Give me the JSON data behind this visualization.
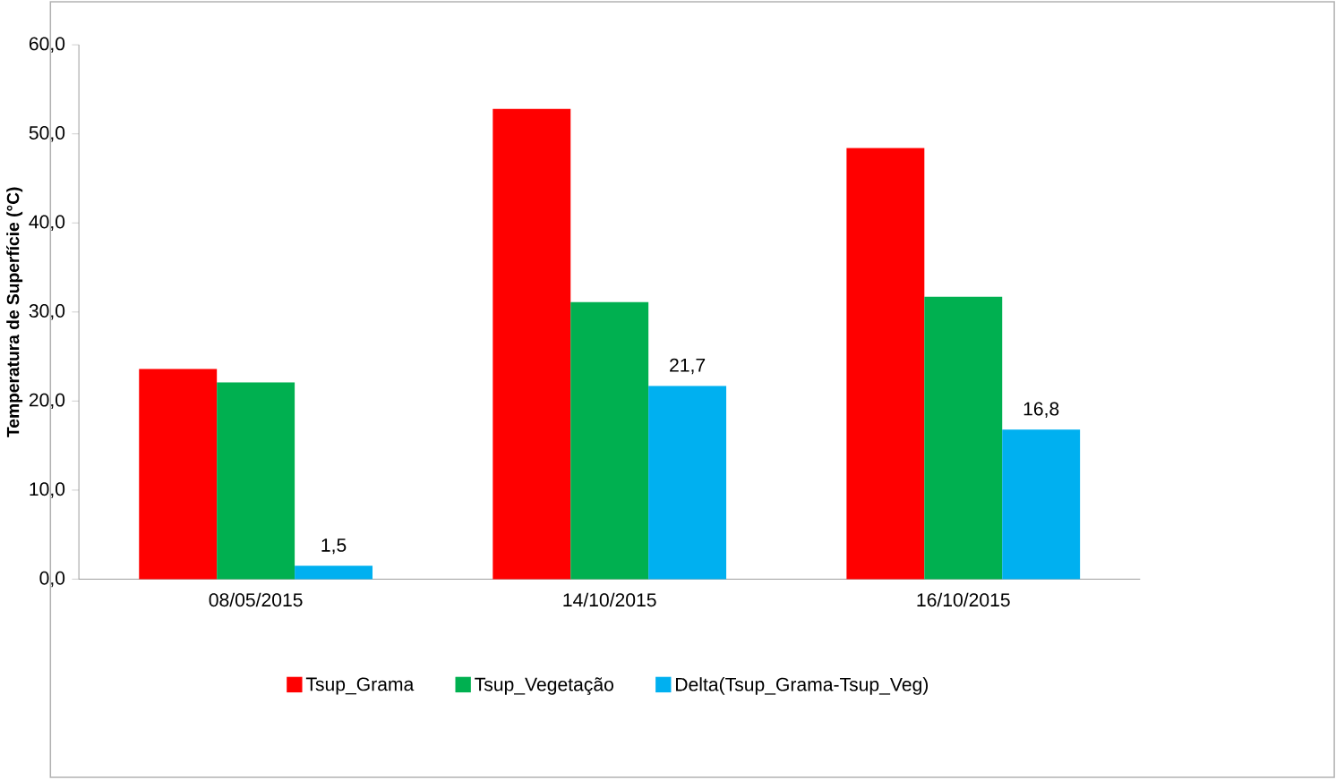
{
  "chart_data": {
    "type": "bar",
    "ylabel": "Temperatura de Superfície (°C)",
    "categories": [
      "08/05/2015",
      "14/10/2015",
      "16/10/2015"
    ],
    "series": [
      {
        "name": "Tsup_Grama",
        "color": "#ff0000",
        "values": [
          23.6,
          52.8,
          48.4
        ]
      },
      {
        "name": "Tsup_Vegetação",
        "color": "#00b050",
        "values": [
          22.1,
          31.1,
          31.7
        ]
      },
      {
        "name": "Delta(Tsup_Grama-Tsup_Veg)",
        "color": "#00b0f0",
        "values": [
          1.5,
          21.7,
          16.8
        ],
        "value_labels": [
          "1,5",
          "21,7",
          "16,8"
        ]
      }
    ],
    "ylim": [
      0,
      60
    ],
    "yticks": [
      {
        "value": 0,
        "label": "0,0"
      },
      {
        "value": 10,
        "label": "10,0"
      },
      {
        "value": 20,
        "label": "20,0"
      },
      {
        "value": 30,
        "label": "30,0"
      },
      {
        "value": 40,
        "label": "40,0"
      },
      {
        "value": 50,
        "label": "50,0"
      },
      {
        "value": 60,
        "label": "60,0"
      }
    ],
    "grid": false,
    "legend": "bottom"
  }
}
